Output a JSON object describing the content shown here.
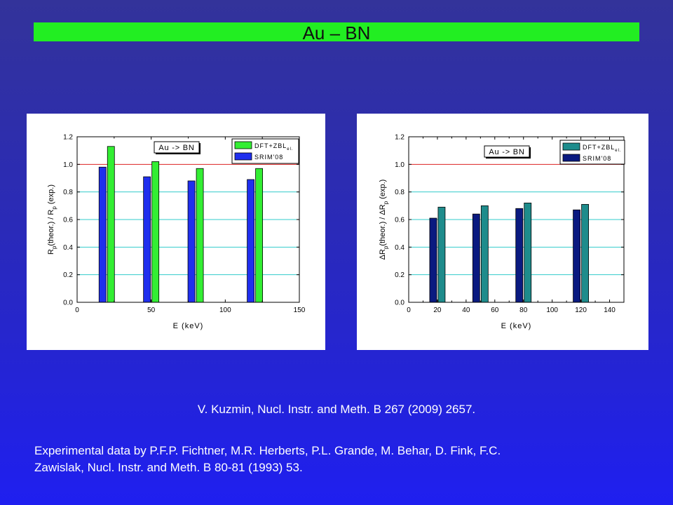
{
  "slide": {
    "title": "Au – BN",
    "citation": "V. Kuzmin, Nucl. Instr. and Meth. B 267 (2009) 2657.",
    "experimental_line1": "Experimental data by P.F.P. Fichtner, M.R. Herberts, P.L. Grande, M. Behar, D. Fink, F.C.",
    "experimental_line2": "Zawislak, Nucl. Instr. and Meth. B 80-81 (1993) 53."
  },
  "colors": {
    "title_bar": "#22ee22",
    "dft_left": "#33ee33",
    "srim_left": "#1f2fee",
    "dft_right": "#1e8c8c",
    "srim_right": "#0a1a80",
    "reference_line": "#dd2222",
    "grid": "#33cccc"
  },
  "chart_data": [
    {
      "type": "bar",
      "xlabel": "E (keV)",
      "ylabel": "Rp(theor.) / Rp (exp.)",
      "ylabel_parts": [
        "R",
        "p",
        "(theor.) / R",
        "p",
        " (exp.)"
      ],
      "xlim": [
        0,
        150
      ],
      "ylim": [
        0.0,
        1.2
      ],
      "xticks": [
        0,
        50,
        100,
        150
      ],
      "yticks": [
        "0.0",
        "0.2",
        "0.4",
        "0.6",
        "0.8",
        "1.0",
        "1.2"
      ],
      "annotation": "Au -> BN",
      "legend_position": "top-right",
      "legend": [
        "DFT+ZBLel.",
        "SRIM'08"
      ],
      "reference_line": 1.0,
      "series": [
        {
          "name": "SRIM'08",
          "x": [
            20,
            50,
            80,
            120
          ],
          "values": [
            0.98,
            0.91,
            0.88,
            0.89
          ]
        },
        {
          "name": "DFT+ZBLel.",
          "x": [
            20,
            50,
            80,
            120
          ],
          "values": [
            1.13,
            1.02,
            0.97,
            0.97
          ]
        }
      ]
    },
    {
      "type": "bar",
      "xlabel": "E (keV)",
      "ylabel": "ΔRp(theor.) / ΔRp (exp.)",
      "ylabel_parts": [
        "ΔR",
        "p",
        "(theor.) / ΔR",
        "p",
        " (exp.)"
      ],
      "xlim": [
        0,
        150
      ],
      "ylim": [
        0.0,
        1.2
      ],
      "xticks": [
        0,
        20,
        40,
        60,
        80,
        100,
        120,
        140
      ],
      "yticks": [
        "0.0",
        "0.2",
        "0.4",
        "0.6",
        "0.8",
        "1.0",
        "1.2"
      ],
      "annotation": "Au -> BN",
      "legend_position": "top-right",
      "legend": [
        "DFT+ZBLel.",
        "SRIM'08"
      ],
      "reference_line": 1.0,
      "series": [
        {
          "name": "SRIM'08",
          "x": [
            20,
            50,
            80,
            120
          ],
          "values": [
            0.61,
            0.64,
            0.68,
            0.67
          ]
        },
        {
          "name": "DFT+ZBLel.",
          "x": [
            20,
            50,
            80,
            120
          ],
          "values": [
            0.69,
            0.7,
            0.72,
            0.71
          ]
        }
      ]
    }
  ]
}
